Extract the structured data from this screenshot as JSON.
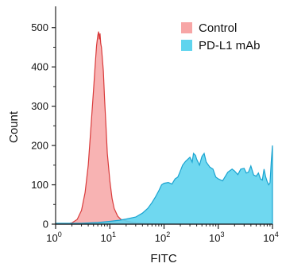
{
  "chart_data": {
    "type": "area",
    "xlabel": "FITC",
    "ylabel": "Count",
    "x_scale": "log",
    "xlim": [
      1,
      10000
    ],
    "ylim": [
      0,
      550
    ],
    "x_ticks": [
      {
        "value": 1,
        "base": "10",
        "exp": "0"
      },
      {
        "value": 10,
        "base": "10",
        "exp": "1"
      },
      {
        "value": 100,
        "base": "10",
        "exp": "2"
      },
      {
        "value": 1000,
        "base": "10",
        "exp": "3"
      },
      {
        "value": 10000,
        "base": "10",
        "exp": "4"
      }
    ],
    "y_ticks": [
      0,
      100,
      200,
      300,
      400,
      500
    ],
    "legend_position": "top-right",
    "series": [
      {
        "name": "Control",
        "fill": "#f7a6a6",
        "stroke": "#d93a3a",
        "points": [
          [
            1,
            0
          ],
          [
            1.6,
            0
          ],
          [
            2.0,
            3
          ],
          [
            2.5,
            12
          ],
          [
            3.0,
            35
          ],
          [
            3.5,
            80
          ],
          [
            4.0,
            150
          ],
          [
            4.5,
            250
          ],
          [
            5.0,
            340
          ],
          [
            5.4,
            410
          ],
          [
            5.7,
            455
          ],
          [
            6.0,
            480
          ],
          [
            6.2,
            490
          ],
          [
            6.4,
            470
          ],
          [
            6.6,
            485
          ],
          [
            6.8,
            460
          ],
          [
            7.0,
            450
          ],
          [
            7.3,
            420
          ],
          [
            7.6,
            390
          ],
          [
            8.0,
            320
          ],
          [
            8.5,
            250
          ],
          [
            9.0,
            180
          ],
          [
            10,
            110
          ],
          [
            11,
            65
          ],
          [
            12,
            40
          ],
          [
            14,
            20
          ],
          [
            16,
            12
          ],
          [
            20,
            8
          ],
          [
            25,
            5
          ],
          [
            30,
            3
          ],
          [
            40,
            2
          ],
          [
            60,
            1
          ],
          [
            100,
            0
          ],
          [
            10000,
            0
          ]
        ]
      },
      {
        "name": "PD-L1 mAb",
        "fill": "#5fd4ee",
        "stroke": "#1aa3d0",
        "points": [
          [
            1,
            2
          ],
          [
            3,
            2
          ],
          [
            6,
            4
          ],
          [
            10,
            7
          ],
          [
            15,
            10
          ],
          [
            20,
            13
          ],
          [
            30,
            18
          ],
          [
            40,
            28
          ],
          [
            50,
            40
          ],
          [
            60,
            55
          ],
          [
            70,
            70
          ],
          [
            80,
            85
          ],
          [
            90,
            100
          ],
          [
            100,
            104
          ],
          [
            120,
            106
          ],
          [
            140,
            102
          ],
          [
            160,
            115
          ],
          [
            180,
            120
          ],
          [
            200,
            135
          ],
          [
            220,
            150
          ],
          [
            250,
            160
          ],
          [
            300,
            170
          ],
          [
            330,
            158
          ],
          [
            350,
            180
          ],
          [
            380,
            175
          ],
          [
            400,
            165
          ],
          [
            450,
            150
          ],
          [
            500,
            172
          ],
          [
            550,
            180
          ],
          [
            600,
            158
          ],
          [
            700,
            145
          ],
          [
            800,
            140
          ],
          [
            900,
            120
          ],
          [
            1000,
            115
          ],
          [
            1200,
            110
          ],
          [
            1500,
            132
          ],
          [
            1800,
            140
          ],
          [
            2000,
            135
          ],
          [
            2300,
            126
          ],
          [
            2600,
            140
          ],
          [
            3000,
            142
          ],
          [
            3300,
            130
          ],
          [
            3600,
            132
          ],
          [
            4000,
            148
          ],
          [
            4500,
            125
          ],
          [
            5000,
            122
          ],
          [
            5500,
            130
          ],
          [
            6000,
            115
          ],
          [
            6500,
            112
          ],
          [
            7000,
            140
          ],
          [
            7500,
            120
          ],
          [
            8000,
            108
          ],
          [
            8500,
            100
          ],
          [
            9000,
            105
          ],
          [
            9500,
            160
          ],
          [
            10000,
            200
          ]
        ]
      }
    ]
  }
}
